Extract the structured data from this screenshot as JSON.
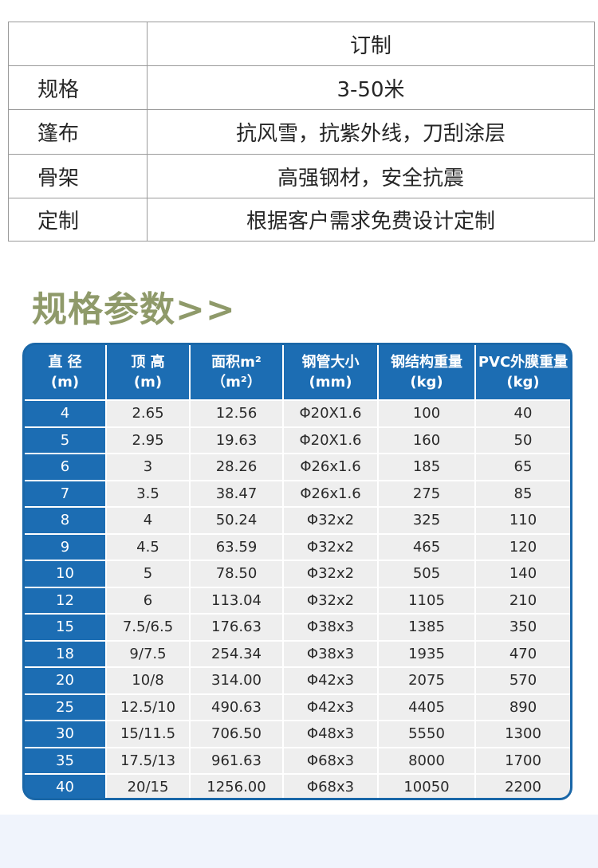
{
  "spec_table": {
    "header_value": "订制",
    "rows": [
      {
        "label": "规格",
        "value": "3-50米"
      },
      {
        "label": "篷布",
        "value": "抗风雪，抗紫外线，刀刮涂层"
      },
      {
        "label": "骨架",
        "value": "高强钢材，安全抗震"
      },
      {
        "label": "定制",
        "value": "根据客户需求免费设计定制"
      }
    ]
  },
  "section_title": "规格参数>>",
  "params": {
    "headers": [
      {
        "line1": "直 径",
        "line2": "(m)"
      },
      {
        "line1": "顶 高",
        "line2": "(m)"
      },
      {
        "line1": "面积m²",
        "line2": "（m²）"
      },
      {
        "line1": "钢管大小",
        "line2": "(mm)"
      },
      {
        "line1": "钢结构重量",
        "line2": "(kg)"
      },
      {
        "line1": "PVC外膜重量",
        "line2": "(kg)"
      }
    ],
    "rows": [
      [
        "4",
        "2.65",
        "12.56",
        "Φ20X1.6",
        "100",
        "40"
      ],
      [
        "5",
        "2.95",
        "19.63",
        "Φ20X1.6",
        "160",
        "50"
      ],
      [
        "6",
        "3",
        "28.26",
        "Φ26x1.6",
        "185",
        "65"
      ],
      [
        "7",
        "3.5",
        "38.47",
        "Φ26x1.6",
        "275",
        "85"
      ],
      [
        "8",
        "4",
        "50.24",
        "Φ32x2",
        "325",
        "110"
      ],
      [
        "9",
        "4.5",
        "63.59",
        "Φ32x2",
        "465",
        "120"
      ],
      [
        "10",
        "5",
        "78.50",
        "Φ32x2",
        "505",
        "140"
      ],
      [
        "12",
        "6",
        "113.04",
        "Φ32x2",
        "1105",
        "210"
      ],
      [
        "15",
        "7.5/6.5",
        "176.63",
        "Φ38x3",
        "1385",
        "350"
      ],
      [
        "18",
        "9/7.5",
        "254.34",
        "Φ38x3",
        "1935",
        "470"
      ],
      [
        "20",
        "10/8",
        "314.00",
        "Φ42x3",
        "2075",
        "570"
      ],
      [
        "25",
        "12.5/10",
        "490.63",
        "Φ42x3",
        "4405",
        "890"
      ],
      [
        "30",
        "15/11.5",
        "706.50",
        "Φ48x3",
        "5550",
        "1300"
      ],
      [
        "35",
        "17.5/13",
        "961.63",
        "Φ68x3",
        "8000",
        "1700"
      ],
      [
        "40",
        "20/15",
        "1256.00",
        "Φ68x3",
        "10050",
        "2200"
      ]
    ]
  },
  "colors": {
    "accent_blue": "#1c6db3",
    "title_olive": "#8f9a6a",
    "cell_gray": "#eeeeee"
  }
}
